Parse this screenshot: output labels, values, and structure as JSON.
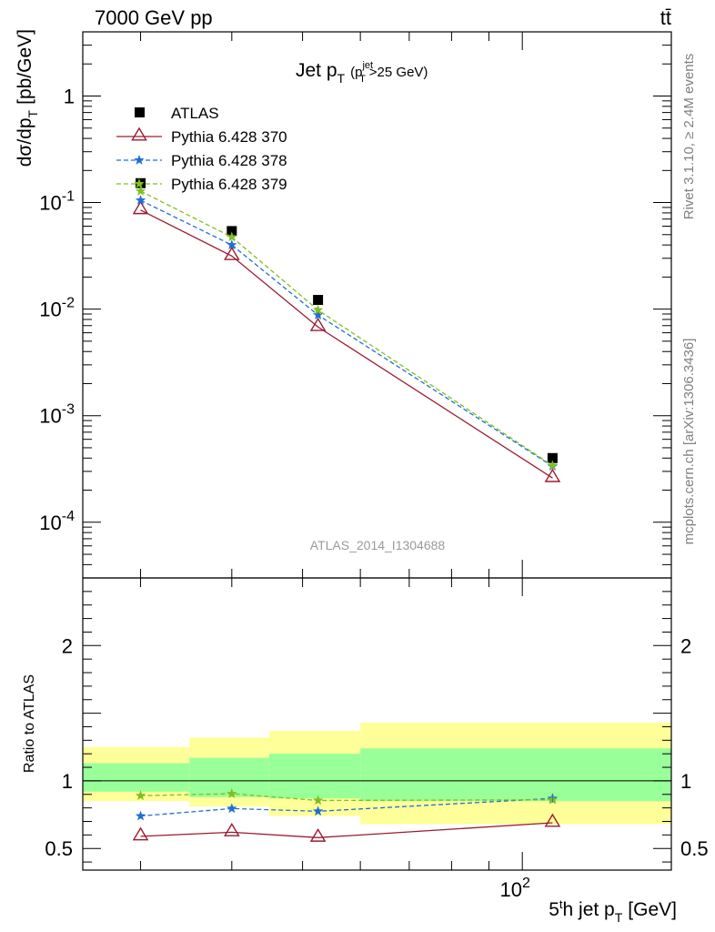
{
  "header": {
    "energy": "7000 GeV pp",
    "process": "tt̄"
  },
  "side_labels": {
    "rivet": "Rivet 3.1.10, ≥ 2.4M events",
    "mcplots": "mcplots.cern.ch [arXiv:1306.3436]"
  },
  "analysis_id": "ATLAS_2014_I1304688",
  "colors": {
    "data": "#000000",
    "mc370": "#9b1b30",
    "mc378": "#1f6fd6",
    "mc379": "#7fbf1f",
    "band_outer": "#ffff99",
    "band_inner": "#99ff99"
  },
  "chart_data": [
    {
      "type": "scatter",
      "panel": "main",
      "title": "Jet p_T (p_T^jet>25 GeV)",
      "xlabel": "5^th jet p_T [GeV]",
      "ylabel": "dσ/dp_T [pb/GeV]",
      "xscale": "log",
      "yscale": "log",
      "xlim": [
        25,
        160
      ],
      "ylim": [
        3e-05,
        4
      ],
      "ytick_labels": [
        "1",
        "10^-1",
        "10^-2",
        "10^-3",
        "10^-4"
      ],
      "legend_position": "top-left",
      "series": [
        {
          "name": "ATLAS",
          "marker": "square",
          "x": [
            30,
            40,
            52.5,
            110
          ],
          "y": [
            0.152,
            0.054,
            0.0122,
            0.0004
          ]
        },
        {
          "name": "Pythia 6.428 370",
          "marker": "open-triangle",
          "line": "solid",
          "x": [
            30,
            40,
            52.5,
            110
          ],
          "y": [
            0.085,
            0.0315,
            0.0068,
            0.00026
          ]
        },
        {
          "name": "Pythia 6.428 378",
          "marker": "star",
          "line": "dashed",
          "x": [
            30,
            40,
            52.5,
            110
          ],
          "y": [
            0.105,
            0.04,
            0.0088,
            0.000335
          ]
        },
        {
          "name": "Pythia 6.428 379",
          "marker": "star",
          "line": "dashed",
          "x": [
            30,
            40,
            52.5,
            110
          ],
          "y": [
            0.128,
            0.0475,
            0.0098,
            0.00034
          ]
        }
      ]
    },
    {
      "type": "line",
      "panel": "ratio",
      "ylabel": "Ratio to ATLAS",
      "xscale": "log",
      "xlim": [
        25,
        160
      ],
      "ylim": [
        0.34,
        2.5
      ],
      "ytick_labels": [
        "0.5",
        "1",
        "2"
      ],
      "xtick_labels": [
        "10^2"
      ],
      "reference": 1,
      "bands": [
        {
          "x_edges": [
            25,
            35,
            45,
            60,
            160
          ],
          "outer_lo": [
            0.85,
            0.81,
            0.74,
            0.68
          ],
          "outer_hi": [
            1.25,
            1.32,
            1.37,
            1.43
          ],
          "inner_lo": [
            0.92,
            0.88,
            0.87,
            0.85
          ],
          "inner_hi": [
            1.13,
            1.17,
            1.2,
            1.24
          ]
        }
      ],
      "series": [
        {
          "name": "Pythia 6.428 370",
          "x": [
            30,
            40,
            52.5,
            110
          ],
          "y": [
            0.59,
            0.62,
            0.58,
            0.69
          ]
        },
        {
          "name": "Pythia 6.428 378",
          "x": [
            30,
            40,
            52.5,
            110
          ],
          "y": [
            0.74,
            0.795,
            0.775,
            0.87
          ]
        },
        {
          "name": "Pythia 6.428 379",
          "x": [
            30,
            40,
            52.5,
            110
          ],
          "y": [
            0.89,
            0.905,
            0.855,
            0.86
          ]
        }
      ]
    }
  ]
}
